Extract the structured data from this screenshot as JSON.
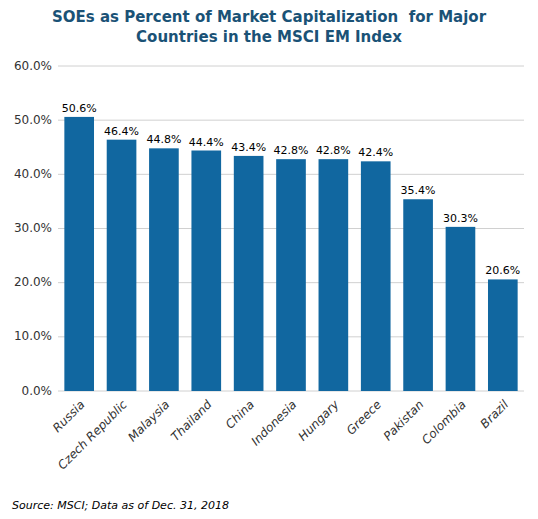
{
  "chart_data": {
    "type": "bar",
    "title": "SOEs as Percent of Market Capitalization  for Major\nCountries in the MSCI EM Index",
    "categories": [
      "Russia",
      "Czech Republic",
      "Malaysia",
      "Thailand",
      "China",
      "Indonesia",
      "Hungary",
      "Greece",
      "Pakistan",
      "Colombia",
      "Brazil"
    ],
    "values": [
      50.6,
      46.4,
      44.8,
      44.4,
      43.4,
      42.8,
      42.8,
      42.4,
      35.4,
      30.3,
      20.6
    ],
    "value_labels": [
      "50.6%",
      "46.4%",
      "44.8%",
      "44.4%",
      "43.4%",
      "42.8%",
      "42.8%",
      "42.4%",
      "35.4%",
      "30.3%",
      "20.6%"
    ],
    "data_labels": true,
    "color": "#1167A0",
    "ylim": [
      0,
      60
    ],
    "yticks": [
      {
        "value": 0,
        "label": "0.0%"
      },
      {
        "value": 10,
        "label": "10.0%"
      },
      {
        "value": 20,
        "label": "20.0%"
      },
      {
        "value": 30,
        "label": "30.0%"
      },
      {
        "value": 40,
        "label": "40.0%"
      },
      {
        "value": 50,
        "label": "50.0%"
      },
      {
        "value": 60,
        "label": "60.0%"
      }
    ],
    "grid": true,
    "annotations": [
      "Source: MSCI; Data as of Dec. 31, 2018"
    ]
  }
}
